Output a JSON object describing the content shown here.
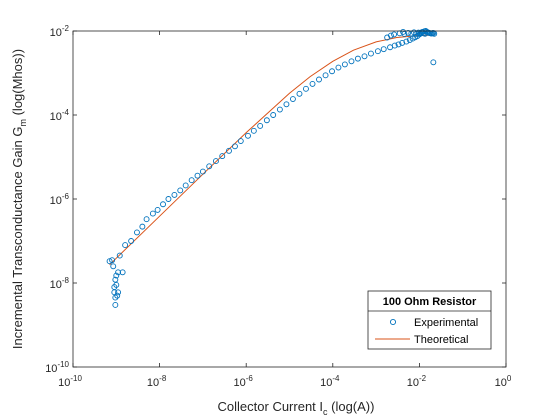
{
  "chart_data": {
    "type": "scatter",
    "xscale": "log",
    "yscale": "log",
    "xlim": [
      1e-10,
      1
    ],
    "ylim": [
      1e-10,
      0.01
    ],
    "xlabel_main": "Collector Current I",
    "xlabel_sub": "c",
    "xlabel_tail": " (log(A))",
    "ylabel_main": "Incremental Transconductance Gain G",
    "ylabel_sub": "m",
    "ylabel_tail": " (log(Mhos))",
    "x_ticks": [
      {
        "value": 1e-10,
        "base": "10",
        "exp": "-10"
      },
      {
        "value": 1e-08,
        "base": "10",
        "exp": "-8"
      },
      {
        "value": 1e-06,
        "base": "10",
        "exp": "-6"
      },
      {
        "value": 0.0001,
        "base": "10",
        "exp": "-4"
      },
      {
        "value": 0.01,
        "base": "10",
        "exp": "-2"
      },
      {
        "value": 1,
        "base": "10",
        "exp": "0"
      }
    ],
    "y_ticks": [
      {
        "value": 1e-10,
        "base": "10",
        "exp": "-10"
      },
      {
        "value": 1e-08,
        "base": "10",
        "exp": "-8"
      },
      {
        "value": 1e-06,
        "base": "10",
        "exp": "-6"
      },
      {
        "value": 0.0001,
        "base": "10",
        "exp": "-4"
      },
      {
        "value": 0.01,
        "base": "10",
        "exp": "-2"
      }
    ],
    "legend": {
      "title": "100 Ohm Resistor",
      "placement": "bottom-right"
    },
    "series": [
      {
        "name": "Experimental",
        "style": "circle",
        "color": "#0072BD",
        "points": [
          [
            7e-10,
            3.3e-08
          ],
          [
            8e-10,
            3.5e-08
          ],
          [
            8.5e-10,
            2.5e-08
          ],
          [
            9e-10,
            8e-09
          ],
          [
            9e-10,
            6e-09
          ],
          [
            9.5e-10,
            1.2e-08
          ],
          [
            9.5e-10,
            4.5e-09
          ],
          [
            9.5e-10,
            3e-09
          ],
          [
            1e-09,
            1.5e-08
          ],
          [
            1e-09,
            9e-09
          ],
          [
            1.05e-09,
            5e-09
          ],
          [
            1.1e-09,
            1.8e-08
          ],
          [
            1.1e-09,
            6e-09
          ],
          [
            1.2e-09,
            4.5e-08
          ],
          [
            1.4e-09,
            1.8e-08
          ],
          [
            1.6e-09,
            8e-08
          ],
          [
            2.2e-09,
            1e-07
          ],
          [
            3e-09,
            1.6e-07
          ],
          [
            4e-09,
            2.2e-07
          ],
          [
            5e-09,
            3.3e-07
          ],
          [
            7e-09,
            4.5e-07
          ],
          [
            9e-09,
            5.5e-07
          ],
          [
            1.2e-08,
            7.5e-07
          ],
          [
            1.6e-08,
            1e-06
          ],
          [
            2.2e-08,
            1.25e-06
          ],
          [
            3e-08,
            1.6e-06
          ],
          [
            4e-08,
            2.1e-06
          ],
          [
            5.5e-08,
            2.8e-06
          ],
          [
            7.5e-08,
            3.6e-06
          ],
          [
            1e-07,
            4.5e-06
          ],
          [
            1.4e-07,
            6e-06
          ],
          [
            2e-07,
            8e-06
          ],
          [
            2.8e-07,
            1.05e-05
          ],
          [
            4e-07,
            1.4e-05
          ],
          [
            5.5e-07,
            1.8e-05
          ],
          [
            7.5e-07,
            2.4e-05
          ],
          [
            1.1e-06,
            3.2e-05
          ],
          [
            1.5e-06,
            4.2e-05
          ],
          [
            2.1e-06,
            5.5e-05
          ],
          [
            3e-06,
            7.5e-05
          ],
          [
            4.2e-06,
            0.0001
          ],
          [
            6e-06,
            0.000135
          ],
          [
            8.5e-06,
            0.00018
          ],
          [
            1.2e-05,
            0.00024
          ],
          [
            1.7e-05,
            0.00032
          ],
          [
            2.4e-05,
            0.00042
          ],
          [
            3.4e-05,
            0.00055
          ],
          [
            4.8e-05,
            0.0007
          ],
          [
            6.8e-05,
            0.00088
          ],
          [
            9.6e-05,
            0.0011
          ],
          [
            0.000135,
            0.00135
          ],
          [
            0.00019,
            0.0016
          ],
          [
            0.00027,
            0.0019
          ],
          [
            0.00038,
            0.0022
          ],
          [
            0.00054,
            0.0025
          ],
          [
            0.00076,
            0.0029
          ],
          [
            0.0011,
            0.0033
          ],
          [
            0.0015,
            0.0037
          ],
          [
            0.0021,
            0.0041
          ],
          [
            0.0027,
            0.0045
          ],
          [
            0.0033,
            0.0048
          ],
          [
            0.004,
            0.0052
          ],
          [
            0.005,
            0.0056
          ],
          [
            0.006,
            0.0061
          ],
          [
            0.007,
            0.0066
          ],
          [
            0.008,
            0.0071
          ],
          [
            0.009,
            0.0076
          ],
          [
            0.01,
            0.0083
          ],
          [
            0.011,
            0.009
          ],
          [
            0.012,
            0.0095
          ],
          [
            0.013,
            0.0098
          ],
          [
            0.014,
            0.01
          ],
          [
            0.015,
            0.0095
          ],
          [
            0.016,
            0.0092
          ],
          [
            0.017,
            0.009
          ],
          [
            0.018,
            0.0088
          ],
          [
            0.019,
            0.0087
          ],
          [
            0.02,
            0.0089
          ],
          [
            0.021,
            0.009
          ],
          [
            0.022,
            0.0086
          ],
          [
            0.0045,
            0.0085
          ],
          [
            0.0055,
            0.009
          ],
          [
            0.0065,
            0.0087
          ],
          [
            0.0075,
            0.0093
          ],
          [
            0.0085,
            0.0085
          ],
          [
            0.0095,
            0.0092
          ],
          [
            0.0105,
            0.0087
          ],
          [
            0.0115,
            0.0094
          ],
          [
            0.0125,
            0.0088
          ],
          [
            0.0135,
            0.0086
          ],
          [
            0.0035,
            0.0088
          ],
          [
            0.0042,
            0.0095
          ],
          [
            0.0022,
            0.0078
          ],
          [
            0.0026,
            0.0083
          ],
          [
            0.0018,
            0.007
          ],
          [
            0.021,
            0.0018
          ]
        ]
      },
      {
        "name": "Theoretical",
        "style": "line",
        "color": "#D95319",
        "points": [
          [
            7e-10,
            2.7e-08
          ],
          [
            1e-09,
            3.9e-08
          ],
          [
            1e-08,
            3.9e-07
          ],
          [
            1e-07,
            3.9e-06
          ],
          [
            1e-06,
            3.8e-05
          ],
          [
            1e-05,
            0.00033
          ],
          [
            3e-05,
            0.00082
          ],
          [
            0.0001,
            0.0019
          ],
          [
            0.0003,
            0.0035
          ],
          [
            0.001,
            0.0055
          ],
          [
            0.003,
            0.007
          ],
          [
            0.01,
            0.0078
          ],
          [
            0.022,
            0.008
          ]
        ]
      }
    ]
  }
}
